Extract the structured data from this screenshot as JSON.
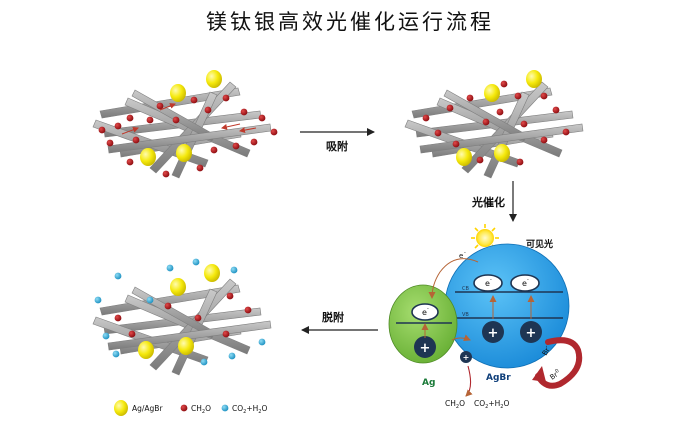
{
  "title": "镁钛银高效光催化运行流程",
  "steps": {
    "adsorption": "吸附",
    "photocatalysis": "光催化",
    "desorption": "脱附"
  },
  "band": {
    "visible_light": "可见光",
    "electron_label": "e",
    "cb_label": "CB",
    "vb_label": "VB",
    "plus_sign": "+",
    "ag_label": "Ag",
    "agbr_label": "AgBr",
    "br_label": "Br",
    "br0_label": "Br",
    "ch2o_label": "CH",
    "co2_label": "CO",
    "plus_h2o": "+H",
    "o_suffix": "O",
    "sub_2": "2",
    "sup_minus": "-",
    "sup_zero": "0"
  },
  "legend": {
    "agagbr": "Ag/AgBr",
    "ch2o_main": "CH",
    "co2_main": "CO",
    "plus_h2o": "+H",
    "o_suffix": "O",
    "sub_2": "2"
  },
  "colors": {
    "rod": "#a6a6a6",
    "rod_edge": "#7f7f7f",
    "particle": "#f3e80c",
    "ch2o": "#b00d12",
    "co2": "#27a9d6",
    "agbr_blue": "#1b9be6",
    "ag_green": "#7ac143",
    "dark_navy": "#1e3553",
    "br_red": "#b0282e",
    "arrow_brown": "#b66436"
  }
}
